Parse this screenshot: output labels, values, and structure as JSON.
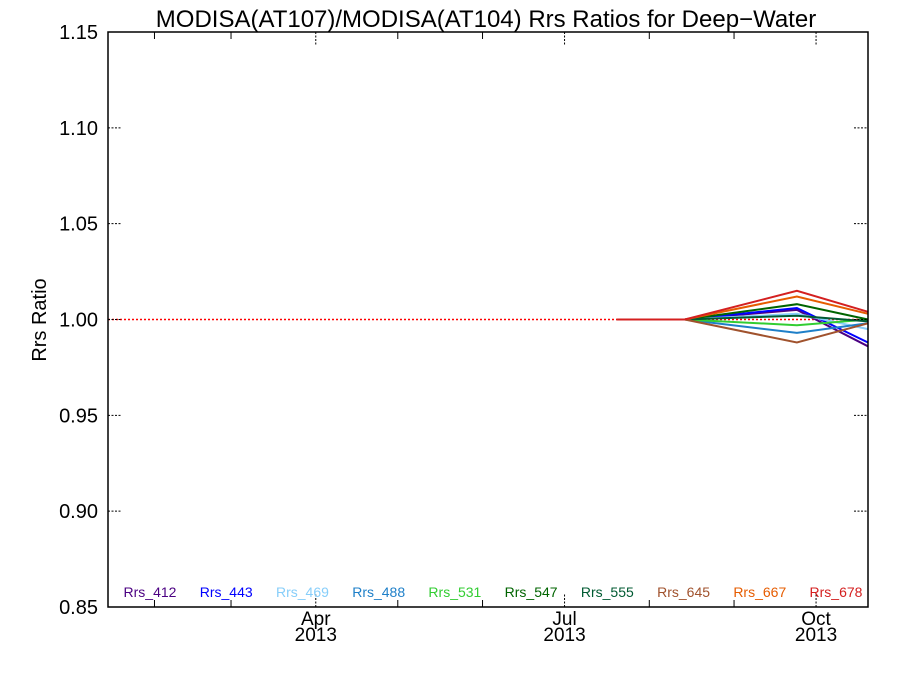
{
  "chart_data": {
    "type": "line",
    "title": "MODISA(AT107)/MODISA(AT104)  Rrs Ratios for Deep−Water",
    "xlabel": "",
    "ylabel": "Rrs Ratio",
    "xlim": [
      "2013-01-15",
      "2013-10-20"
    ],
    "ylim": [
      0.85,
      1.15
    ],
    "y_ticks": [
      {
        "value": 0.85,
        "label": "0.85"
      },
      {
        "value": 0.9,
        "label": "0.90"
      },
      {
        "value": 0.95,
        "label": "0.95"
      },
      {
        "value": 1.0,
        "label": "1.00"
      },
      {
        "value": 1.05,
        "label": "1.05"
      },
      {
        "value": 1.1,
        "label": "1.10"
      },
      {
        "value": 1.15,
        "label": "1.15"
      }
    ],
    "x_major_ticks": [
      {
        "date": "2013-04-01",
        "month": "Apr",
        "year": "2013"
      },
      {
        "date": "2013-07-01",
        "month": "Jul",
        "year": "2013"
      },
      {
        "date": "2013-10-01",
        "month": "Oct",
        "year": "2013"
      }
    ],
    "x_minor_ticks": [
      "2013-02-01",
      "2013-03-01",
      "2013-05-01",
      "2013-06-01",
      "2013-08-01",
      "2013-09-01"
    ],
    "reference_line": {
      "value": 1.0,
      "color": "#ff0000"
    },
    "legend_placement": "bottom",
    "x": [
      "2013-07-20",
      "2013-08-14",
      "2013-09-24",
      "2013-10-20"
    ],
    "series": [
      {
        "name": "Rrs_412",
        "color": "#4b0082",
        "values": [
          1.0,
          1.0,
          1.005,
          0.986
        ]
      },
      {
        "name": "Rrs_443",
        "color": "#0000ff",
        "values": [
          1.0,
          1.0,
          1.006,
          0.988
        ]
      },
      {
        "name": "Rrs_469",
        "color": "#87cefa",
        "values": [
          1.0,
          1.0,
          1.003,
          0.995
        ]
      },
      {
        "name": "Rrs_488",
        "color": "#1e7fc8",
        "values": [
          1.0,
          1.0,
          0.993,
          0.998
        ]
      },
      {
        "name": "Rrs_531",
        "color": "#32cd32",
        "values": [
          1.0,
          1.0,
          0.997,
          1.0
        ]
      },
      {
        "name": "Rrs_547",
        "color": "#006400",
        "values": [
          1.0,
          1.0,
          1.008,
          1.0
        ]
      },
      {
        "name": "Rrs_555",
        "color": "#005a32",
        "values": [
          1.0,
          1.0,
          1.002,
          0.999
        ]
      },
      {
        "name": "Rrs_645",
        "color": "#a0522d",
        "values": [
          1.0,
          1.0,
          0.988,
          0.998
        ]
      },
      {
        "name": "Rrs_667",
        "color": "#e65c00",
        "values": [
          1.0,
          1.0,
          1.012,
          1.003
        ]
      },
      {
        "name": "Rrs_678",
        "color": "#d42020",
        "values": [
          1.0,
          1.0,
          1.015,
          1.004
        ]
      }
    ]
  }
}
